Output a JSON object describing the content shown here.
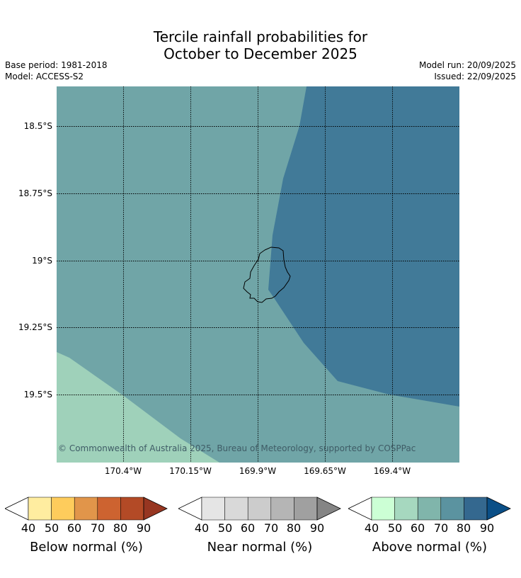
{
  "title": {
    "line1": "Tercile rainfall probabilities for",
    "line2": "October to December 2025"
  },
  "meta": {
    "base_period": "Base period: 1981-2018",
    "model": "Model: ACCESS-S2",
    "model_run": "Model run: 20/09/2025",
    "issued": "Issued: 22/09/2025"
  },
  "map": {
    "lat_labels": [
      "18.5°S",
      "18.75°S",
      "19°S",
      "19.25°S",
      "19.5°S"
    ],
    "lon_labels": [
      "170.4°W",
      "170.15°W",
      "169.9°W",
      "169.65°W",
      "169.4°W"
    ],
    "copyright": "© Commonwealth of Australia 2025, Bureau of Meteorology, supported by COSPPac",
    "region_colors": {
      "above_50": "#9fd1ba",
      "above_60": "#70a5a7",
      "above_80": "#417a98"
    }
  },
  "legend": {
    "below": {
      "title": "Below normal (%)",
      "ticks": [
        "40",
        "50",
        "60",
        "70",
        "80",
        "90"
      ],
      "colors": [
        "#ffeda0",
        "#fecc5c",
        "#e1954a",
        "#cd6330",
        "#b34a26",
        "#973621"
      ]
    },
    "near": {
      "title": "Near normal (%)",
      "ticks": [
        "40",
        "50",
        "60",
        "70",
        "80",
        "90"
      ],
      "colors": [
        "#e5e5e5",
        "#d9d9d9",
        "#cccccc",
        "#b5b5b5",
        "#a0a0a0",
        "#858585"
      ]
    },
    "above": {
      "title": "Above normal (%)",
      "ticks": [
        "40",
        "50",
        "60",
        "70",
        "80",
        "90"
      ],
      "colors": [
        "#ccffd5",
        "#a6d8bf",
        "#80b5ab",
        "#5b93a0",
        "#34688f",
        "#0a4f87"
      ]
    }
  }
}
